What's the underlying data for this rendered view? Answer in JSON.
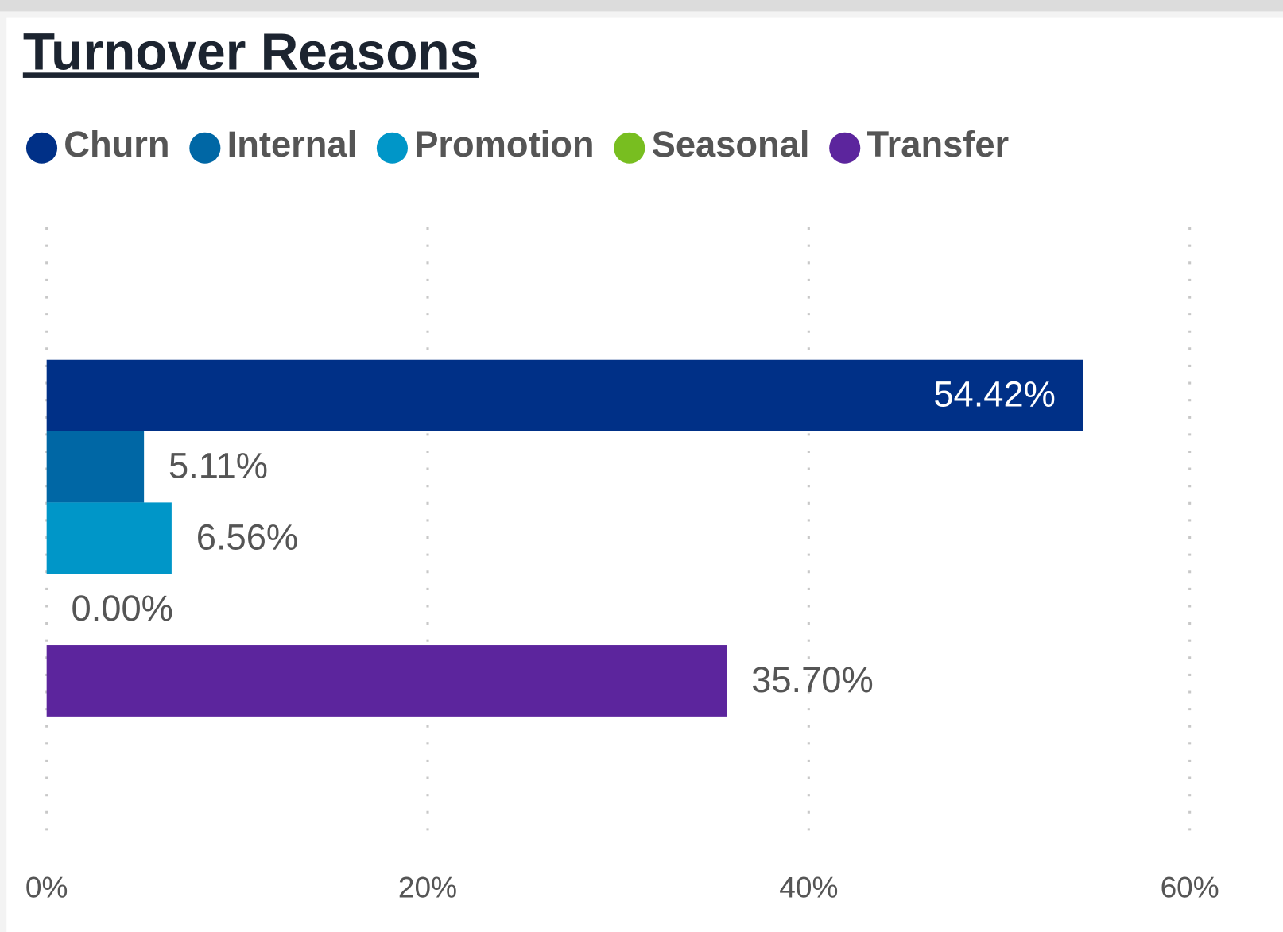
{
  "chart_data": {
    "type": "bar",
    "orientation": "horizontal",
    "title": "Turnover Reasons",
    "series": [
      {
        "name": "Churn",
        "color": "#003087",
        "values": [
          54.42
        ],
        "value_labels": [
          "54.42%"
        ]
      },
      {
        "name": "Internal",
        "color": "#0067a5",
        "values": [
          5.11
        ],
        "value_labels": [
          "5.11%"
        ]
      },
      {
        "name": "Promotion",
        "color": "#0096c8",
        "values": [
          6.56
        ],
        "value_labels": [
          "6.56%"
        ]
      },
      {
        "name": "Seasonal",
        "color": "#78be20",
        "values": [
          0
        ],
        "value_labels": [
          "0.00%"
        ]
      },
      {
        "name": "Transfer",
        "color": "#5c259d",
        "values": [
          35.7
        ],
        "value_labels": [
          "35.70%"
        ]
      }
    ],
    "xlim": [
      0,
      60
    ],
    "xticks": [
      {
        "value": 0,
        "label": "0%"
      },
      {
        "value": 20,
        "label": "20%"
      },
      {
        "value": 40,
        "label": "40%"
      },
      {
        "value": 60,
        "label": "60%"
      }
    ],
    "grid": true,
    "legend": "top"
  }
}
